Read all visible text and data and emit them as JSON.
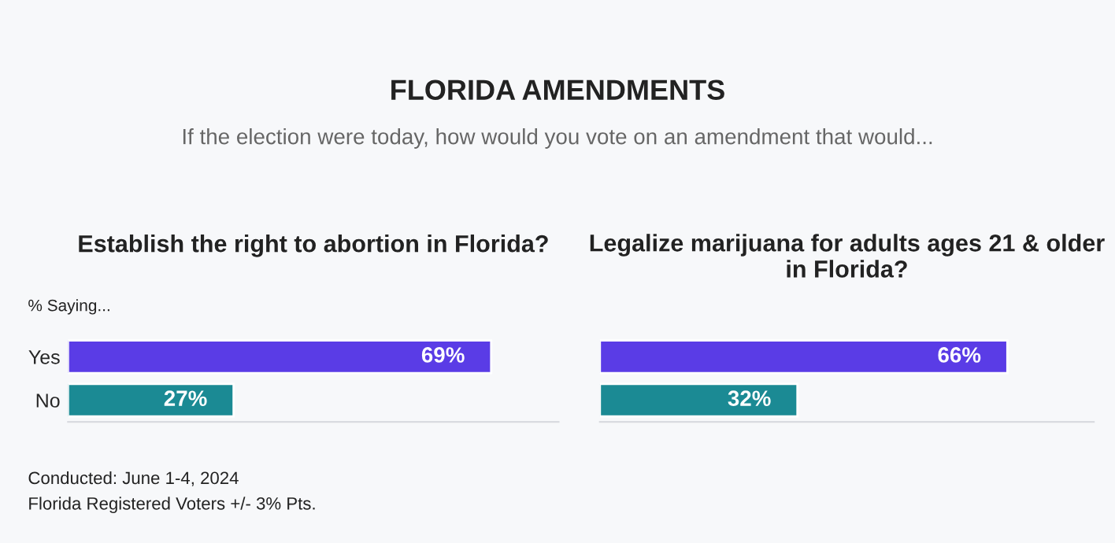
{
  "chart_data": [
    {
      "type": "bar",
      "orientation": "horizontal",
      "title": "Establish the right to abortion in Florida?",
      "categories": [
        "Yes",
        "No"
      ],
      "values": [
        69,
        27
      ],
      "colors": [
        "#5a3ce6",
        "#1b8a94"
      ],
      "value_labels": [
        "69%",
        "27%"
      ],
      "xlim": [
        0,
        80
      ],
      "tick_labels": "y",
      "grid": false,
      "legend": false,
      "annotations": [
        "FLORIDA AMENDMENTS",
        "If the election were today, how would you vote on an amendment that would...",
        "% Saying...",
        "Conducted: June 1-4, 2024",
        "Florida Registered Voters +/- 3% Pts."
      ]
    },
    {
      "type": "bar",
      "orientation": "horizontal",
      "title": "Legalize marijuana for adults ages 21 & older in Florida?",
      "categories": [
        null,
        null
      ],
      "values": [
        66,
        32
      ],
      "colors": [
        "#5a3ce6",
        "#1b8a94"
      ],
      "value_labels": [
        "66%",
        "32%"
      ],
      "xlim": [
        0,
        80
      ],
      "tick_labels": false,
      "grid": false,
      "legend": false
    }
  ]
}
